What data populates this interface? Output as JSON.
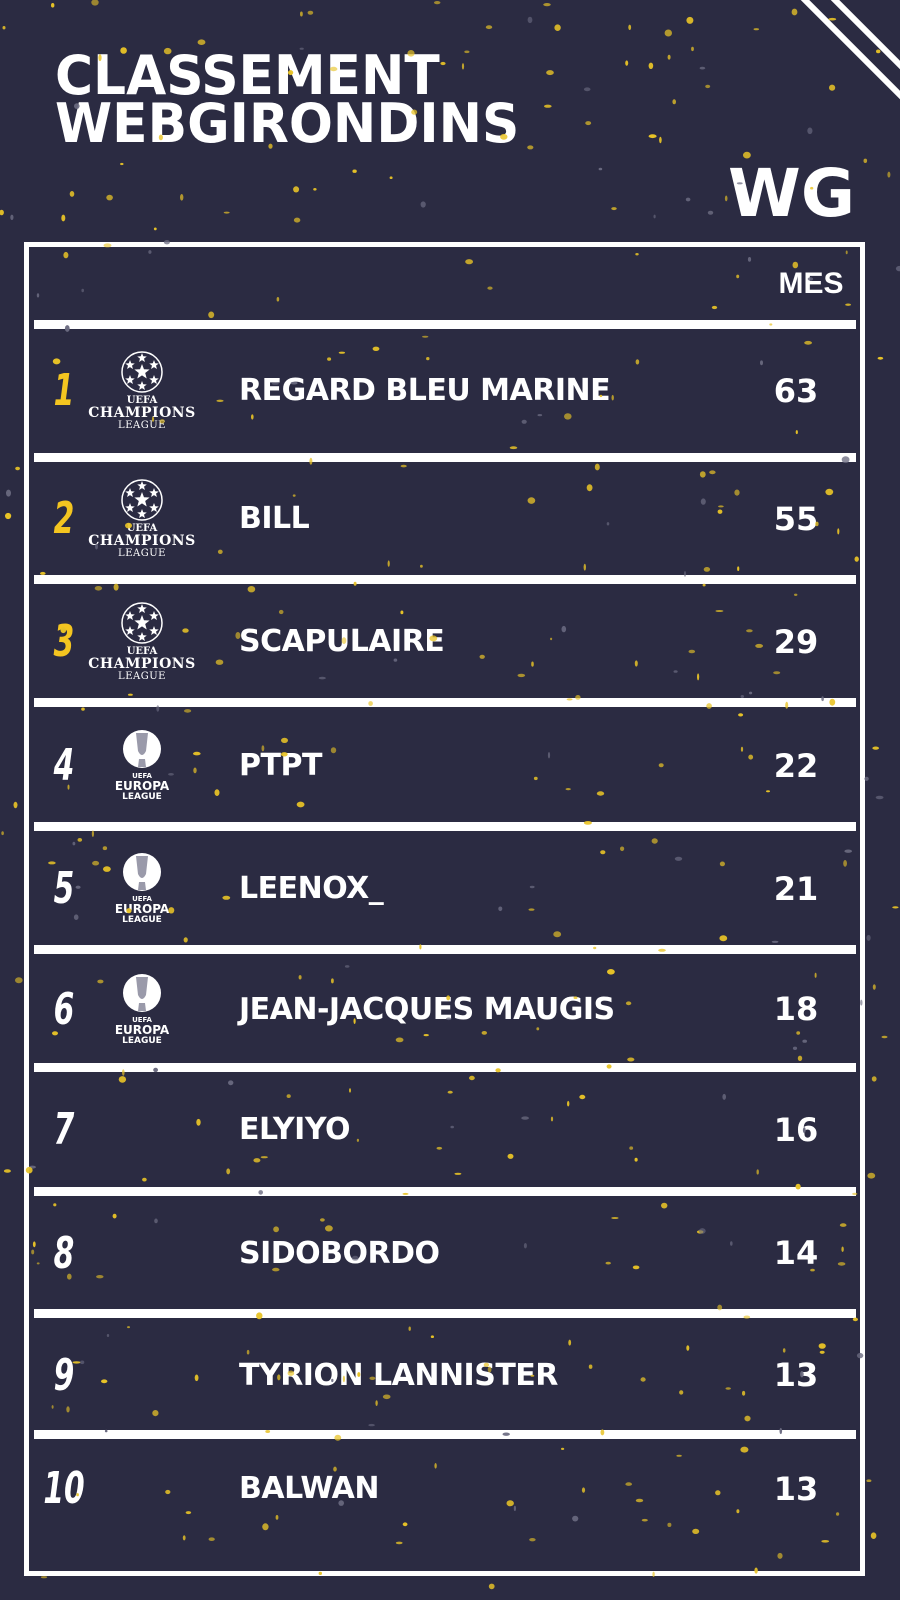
{
  "title": {
    "line1": "CLASSEMENT",
    "line2": "WEBGIRONDINS"
  },
  "logo": "WG",
  "header": {
    "points_label": "MES"
  },
  "colors": {
    "background": "#2b2b42",
    "accent": "#f4c520",
    "text": "#ffffff"
  },
  "rows": [
    {
      "rank": "1",
      "badge": "champions-league",
      "name": "REGARD BLEU MARINE",
      "points": "63"
    },
    {
      "rank": "2",
      "badge": "champions-league",
      "name": "BILL",
      "points": "55"
    },
    {
      "rank": "3",
      "badge": "champions-league",
      "name": "SCAPULAIRE",
      "points": "29"
    },
    {
      "rank": "4",
      "badge": "europa-league",
      "name": "PTPT",
      "points": "22"
    },
    {
      "rank": "5",
      "badge": "europa-league",
      "name": "LEENOX_",
      "points": "21"
    },
    {
      "rank": "6",
      "badge": "europa-league",
      "name": "JEAN-JACQUES MAUGIS",
      "points": "18"
    },
    {
      "rank": "7",
      "badge": "",
      "name": "ELYIYO",
      "points": "16"
    },
    {
      "rank": "8",
      "badge": "",
      "name": "SIDOBORDO",
      "points": "14"
    },
    {
      "rank": "9",
      "badge": "",
      "name": "TYRION LANNISTER",
      "points": "13"
    },
    {
      "rank": "10",
      "badge": "",
      "name": "BALWAN",
      "points": "13"
    }
  ],
  "badges": {
    "champions-league": {
      "top": "UEFA",
      "main": "CHAMPIONS",
      "sub": "LEAGUE"
    },
    "europa-league": {
      "top": "UEFA",
      "main": "EUROPA",
      "sub": "LEAGUE"
    }
  }
}
